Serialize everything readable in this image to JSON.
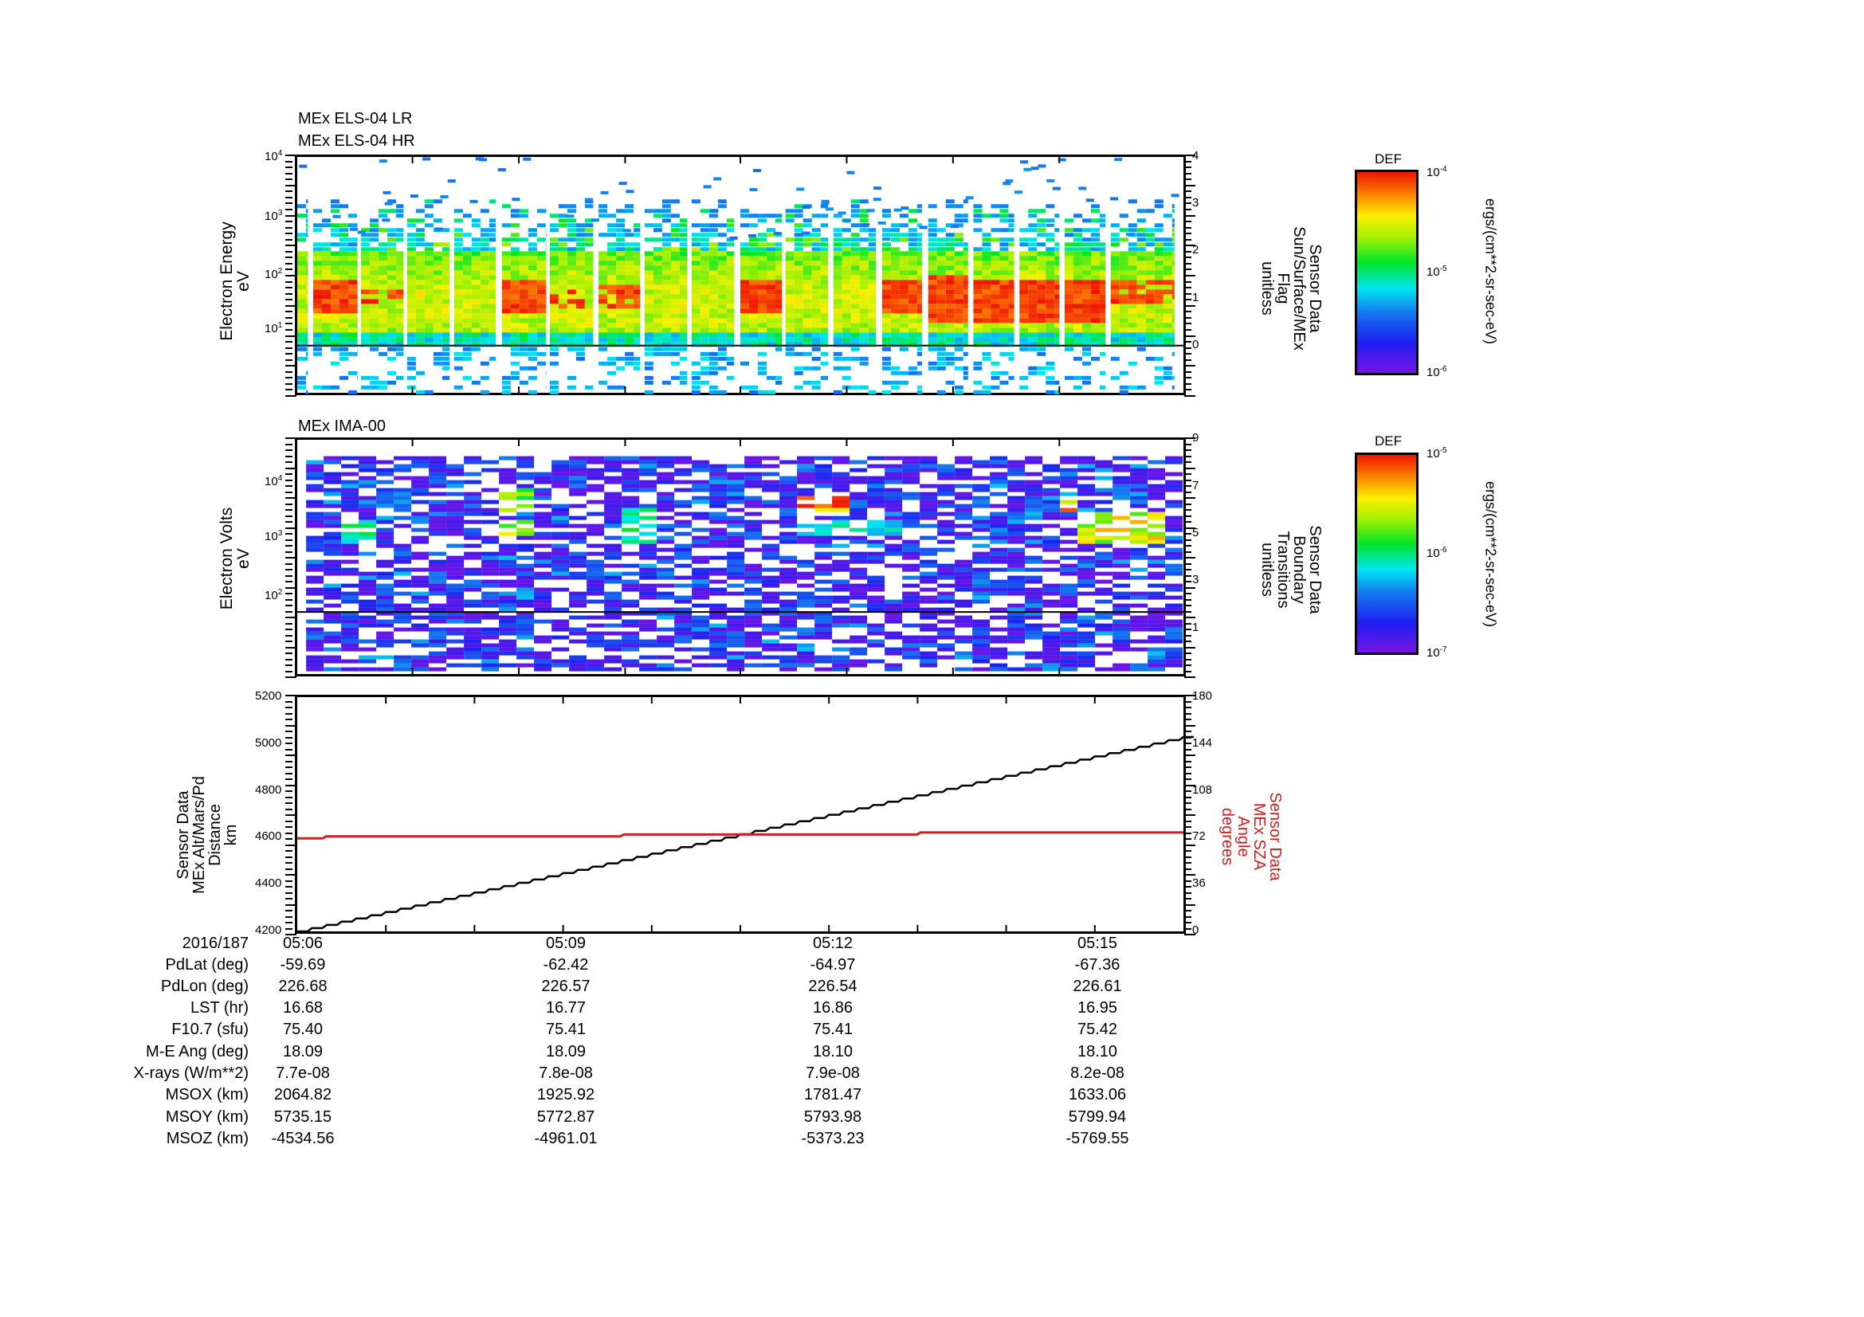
{
  "chart_data": [
    {
      "type": "heatmap",
      "title": "MEx ELS-04 LR / MEx ELS-04 HR",
      "title_lines": [
        "MEx ELS-04 LR",
        "MEx ELS-04 HR"
      ],
      "ylabel": [
        "Electron Energy",
        "eV"
      ],
      "yscale": "log",
      "ylim": [
        1.5,
        10000
      ],
      "yticks": [
        {
          "exp": "1"
        },
        {
          "exp": "2"
        },
        {
          "exp": "3"
        },
        {
          "exp": "4"
        }
      ],
      "y2label": [
        "Sensor Data",
        "Sun/Surface/MEx",
        "Flag",
        "unitless"
      ],
      "y2ticks": [
        "0",
        "1",
        "2",
        "3",
        "4"
      ],
      "y2_flag_value": 0,
      "colorbar": {
        "label": "DEF",
        "units": "ergs/(cm**2-sr-sec-eV)",
        "top_exp": "-4",
        "mid_exp": "-5",
        "bottom_exp": "-6",
        "range": [
          1e-06,
          0.0001
        ]
      },
      "segments": [
        {
          "x0": 0.0,
          "x1": 0.012,
          "hot": 0.0
        },
        {
          "x0": 0.018,
          "x1": 0.068,
          "hot": 0.9,
          "hotLo": 0.3,
          "hotHi": 0.62
        },
        {
          "x0": 0.072,
          "x1": 0.12,
          "hot": 0.35,
          "hotLo": 0.38,
          "hotHi": 0.55
        },
        {
          "x0": 0.124,
          "x1": 0.172,
          "hot": 0.1
        },
        {
          "x0": 0.177,
          "x1": 0.224,
          "hot": 0.05
        },
        {
          "x0": 0.231,
          "x1": 0.281,
          "hot": 0.95,
          "hotLo": 0.3,
          "hotHi": 0.62
        },
        {
          "x0": 0.285,
          "x1": 0.334,
          "hot": 0.25,
          "hotLo": 0.4,
          "hotHi": 0.58
        },
        {
          "x0": 0.34,
          "x1": 0.387,
          "hot": 0.6,
          "hotLo": 0.32,
          "hotHi": 0.6
        },
        {
          "x0": 0.392,
          "x1": 0.44,
          "hot": 0.05
        },
        {
          "x0": 0.445,
          "x1": 0.493,
          "hot": 0.1
        },
        {
          "x0": 0.5,
          "x1": 0.547,
          "hot": 0.95,
          "hotLo": 0.3,
          "hotHi": 0.64
        },
        {
          "x0": 0.551,
          "x1": 0.599,
          "hot": 0.1
        },
        {
          "x0": 0.605,
          "x1": 0.653,
          "hot": 0.05
        },
        {
          "x0": 0.66,
          "x1": 0.705,
          "hot": 0.95,
          "hotLo": 0.28,
          "hotHi": 0.65
        },
        {
          "x0": 0.712,
          "x1": 0.757,
          "hot": 1.0,
          "hotLo": 0.25,
          "hotHi": 0.72
        },
        {
          "x0": 0.763,
          "x1": 0.809,
          "hot": 1.0,
          "hotLo": 0.26,
          "hotHi": 0.72
        },
        {
          "x0": 0.815,
          "x1": 0.86,
          "hot": 1.0,
          "hotLo": 0.27,
          "hotHi": 0.72
        },
        {
          "x0": 0.866,
          "x1": 0.912,
          "hot": 1.0,
          "hotLo": 0.27,
          "hotHi": 0.72
        },
        {
          "x0": 0.918,
          "x1": 0.99,
          "hot": 0.6,
          "hotLo": 0.3,
          "hotHi": 0.55
        }
      ]
    },
    {
      "type": "heatmap",
      "title": "MEx IMA-00",
      "ylabel": [
        "Electron Volts",
        "eV"
      ],
      "yscale": "log",
      "ylim": [
        10,
        40000
      ],
      "yticks": [
        {
          "exp": "2"
        },
        {
          "exp": "3"
        },
        {
          "exp": "4"
        }
      ],
      "y2label": [
        "Sensor Data",
        "Boundary",
        "Transitions",
        "unitless"
      ],
      "y2ticks": [
        "1",
        "3",
        "5",
        "7",
        "9"
      ],
      "y2_transition_value": 1,
      "colorbar": {
        "label": "DEF",
        "units": "ergs/(cm**2-sr-sec-eV)",
        "top_exp": "-5",
        "mid_exp": "-6",
        "bottom_exp": "-7",
        "range": [
          1e-07,
          1e-05
        ]
      },
      "hot_regions": [
        {
          "x0": 0.04,
          "x1": 0.08,
          "y0": 0.33,
          "y1": 0.43,
          "level": 0.55
        },
        {
          "x0": 0.08,
          "x1": 0.12,
          "y0": 0.22,
          "y1": 0.33,
          "level": 0.35
        },
        {
          "x0": 0.225,
          "x1": 0.26,
          "y0": 0.2,
          "y1": 0.3,
          "level": 0.75
        },
        {
          "x0": 0.225,
          "x1": 0.26,
          "y0": 0.33,
          "y1": 0.4,
          "level": 0.8
        },
        {
          "x0": 0.365,
          "x1": 0.4,
          "y0": 0.28,
          "y1": 0.43,
          "level": 0.55
        },
        {
          "x0": 0.545,
          "x1": 0.62,
          "y0": 0.24,
          "y1": 0.31,
          "level": 1.0
        },
        {
          "x0": 0.55,
          "x1": 0.68,
          "y0": 0.33,
          "y1": 0.41,
          "level": 0.5
        },
        {
          "x0": 0.86,
          "x1": 0.88,
          "y0": 0.24,
          "y1": 0.3,
          "level": 1.0
        },
        {
          "x0": 0.88,
          "x1": 0.96,
          "y0": 0.3,
          "y1": 0.44,
          "level": 0.85
        }
      ]
    },
    {
      "type": "line",
      "ylabel": [
        "Sensor Data",
        "MEx Alt/Mars/Pd",
        "Distance",
        "km"
      ],
      "ylim": [
        4200,
        5200
      ],
      "yticks": [
        "4200",
        "4400",
        "4600",
        "4800",
        "5000",
        "5200"
      ],
      "y2label": [
        "Sensor Data",
        "MEx SZA",
        "Angle",
        "degrees"
      ],
      "y2lim": [
        0,
        180
      ],
      "y2ticks": [
        "0",
        "36",
        "72",
        "108",
        "144",
        "180"
      ],
      "series": [
        {
          "name": "MEx Alt/Mars/Pd Distance (km)",
          "color": "#000000",
          "axis": "left",
          "x": [
            "05:06",
            "05:09",
            "05:12",
            "05:15",
            "05:16:40"
          ],
          "values": [
            4200,
            4460,
            4710,
            4960,
            5030
          ]
        },
        {
          "name": "MEx SZA Angle (degrees)",
          "color": "#cc1f1f",
          "axis": "right",
          "x": [
            "05:06",
            "05:06:15",
            "05:10:10",
            "05:13:30",
            "05:16:40"
          ],
          "values": [
            71.5,
            73,
            74.5,
            76,
            76
          ]
        }
      ],
      "xticks": [
        "05:06",
        "05:09",
        "05:12",
        "05:15"
      ]
    }
  ],
  "ephemeris": {
    "date_label": "2016/187",
    "times": [
      "05:06",
      "05:09",
      "05:12",
      "05:15"
    ],
    "rows": [
      {
        "label": "PdLat (deg)",
        "values": [
          "-59.69",
          "-62.42",
          "-64.97",
          "-67.36"
        ]
      },
      {
        "label": "PdLon (deg)",
        "values": [
          "226.68",
          "226.57",
          "226.54",
          "226.61"
        ]
      },
      {
        "label": "LST (hr)",
        "values": [
          "16.68",
          "16.77",
          "16.86",
          "16.95"
        ]
      },
      {
        "label": "F10.7 (sfu)",
        "values": [
          "75.40",
          "75.41",
          "75.41",
          "75.42"
        ]
      },
      {
        "label": "M-E Ang (deg)",
        "values": [
          "18.09",
          "18.09",
          "18.10",
          "18.10"
        ]
      },
      {
        "label": "X-rays (W/m**2)",
        "values": [
          "7.7e-08",
          "7.8e-08",
          "7.9e-08",
          "8.2e-08"
        ]
      },
      {
        "label": "MSOX (km)",
        "values": [
          "2064.82",
          "1925.92",
          "1781.47",
          "1633.06"
        ]
      },
      {
        "label": "MSOY (km)",
        "values": [
          "5735.15",
          "5772.87",
          "5793.98",
          "5799.94"
        ]
      },
      {
        "label": "MSOZ (km)",
        "values": [
          "-4534.56",
          "-4961.01",
          "-5373.23",
          "-5769.55"
        ]
      }
    ]
  },
  "colors": {
    "sza_line": "#cc1f1f",
    "alt_line": "#000000"
  },
  "labels": {
    "p1_title1": "MEx ELS-04 LR",
    "p1_title2": "MEx ELS-04 HR",
    "p2_title": "MEx IMA-00",
    "ten": "10"
  }
}
